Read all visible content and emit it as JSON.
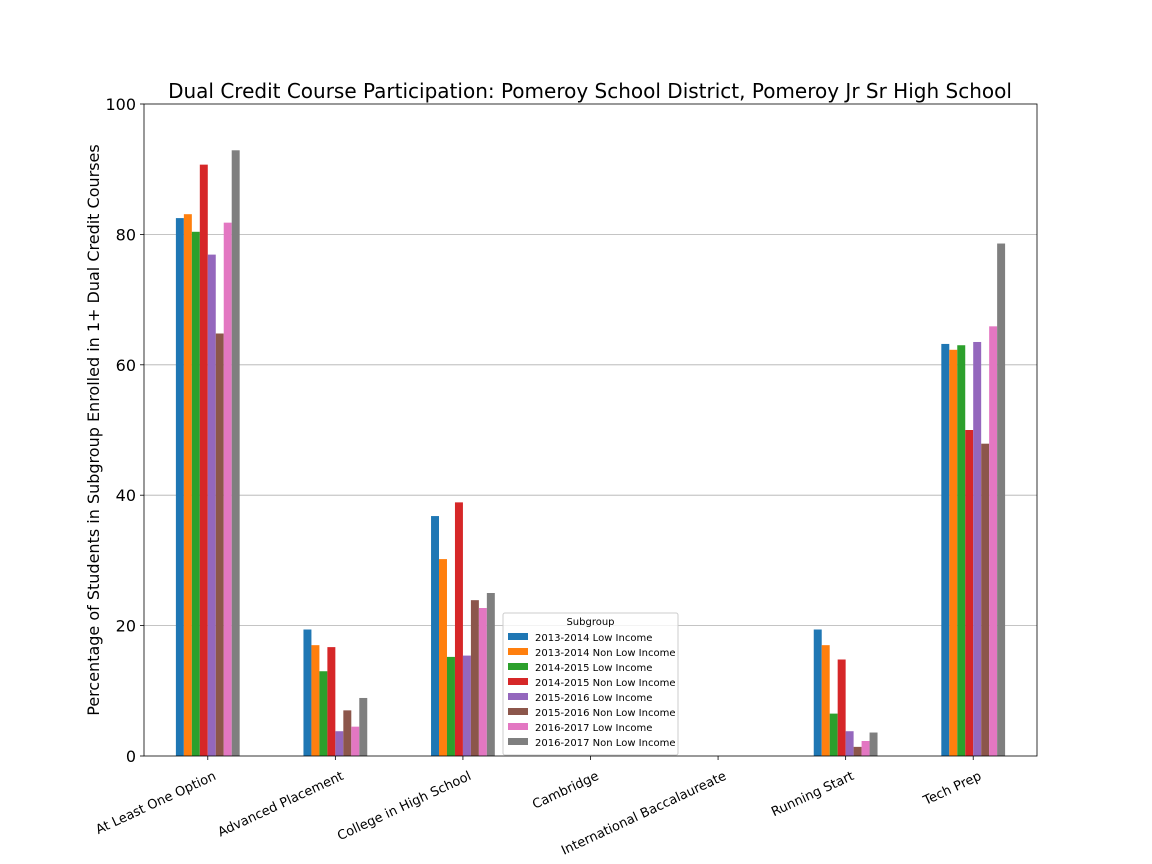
{
  "chart_data": {
    "type": "bar",
    "title": "Dual Credit Course Participation: Pomeroy School District, Pomeroy Jr Sr High School",
    "xlabel": "",
    "ylabel": "Percentage of Students in Subgroup Enrolled in 1+ Dual Credit Courses",
    "ylim": [
      0,
      100
    ],
    "yticks": [
      0,
      20,
      40,
      60,
      80,
      100
    ],
    "grid": "horizontal",
    "legend": {
      "title": "Subgroup",
      "placement": "lower-center"
    },
    "categories": [
      "At Least One Option",
      "Advanced Placement",
      "College in High School",
      "Cambridge",
      "International Baccalaureate",
      "Running Start",
      "Tech Prep"
    ],
    "series": [
      {
        "name": "2013-2014 Low Income",
        "color": "#1f77b4",
        "values": [
          82.5,
          19.4,
          36.8,
          0,
          0,
          19.4,
          63.2
        ]
      },
      {
        "name": "2013-2014 Non Low Income",
        "color": "#ff7f0e",
        "values": [
          83.1,
          17.0,
          30.2,
          0,
          0,
          17.0,
          62.3
        ]
      },
      {
        "name": "2014-2015 Low Income",
        "color": "#2ca02c",
        "values": [
          80.4,
          13.0,
          15.2,
          0,
          0,
          6.5,
          63.0
        ]
      },
      {
        "name": "2014-2015 Non Low Income",
        "color": "#d62728",
        "values": [
          90.7,
          16.7,
          38.9,
          0,
          0,
          14.8,
          50.0
        ]
      },
      {
        "name": "2015-2016 Low Income",
        "color": "#9467bd",
        "values": [
          76.9,
          3.8,
          15.4,
          0,
          0,
          3.8,
          63.5
        ]
      },
      {
        "name": "2015-2016 Non Low Income",
        "color": "#8c564b",
        "values": [
          64.8,
          7.0,
          23.9,
          0,
          0,
          1.4,
          47.9
        ]
      },
      {
        "name": "2016-2017 Low Income",
        "color": "#e377c2",
        "values": [
          81.8,
          4.5,
          22.7,
          0,
          0,
          2.3,
          65.9
        ]
      },
      {
        "name": "2016-2017 Non Low Income",
        "color": "#7f7f7f",
        "values": [
          92.9,
          8.9,
          25.0,
          0,
          0,
          3.6,
          78.6
        ]
      }
    ]
  }
}
